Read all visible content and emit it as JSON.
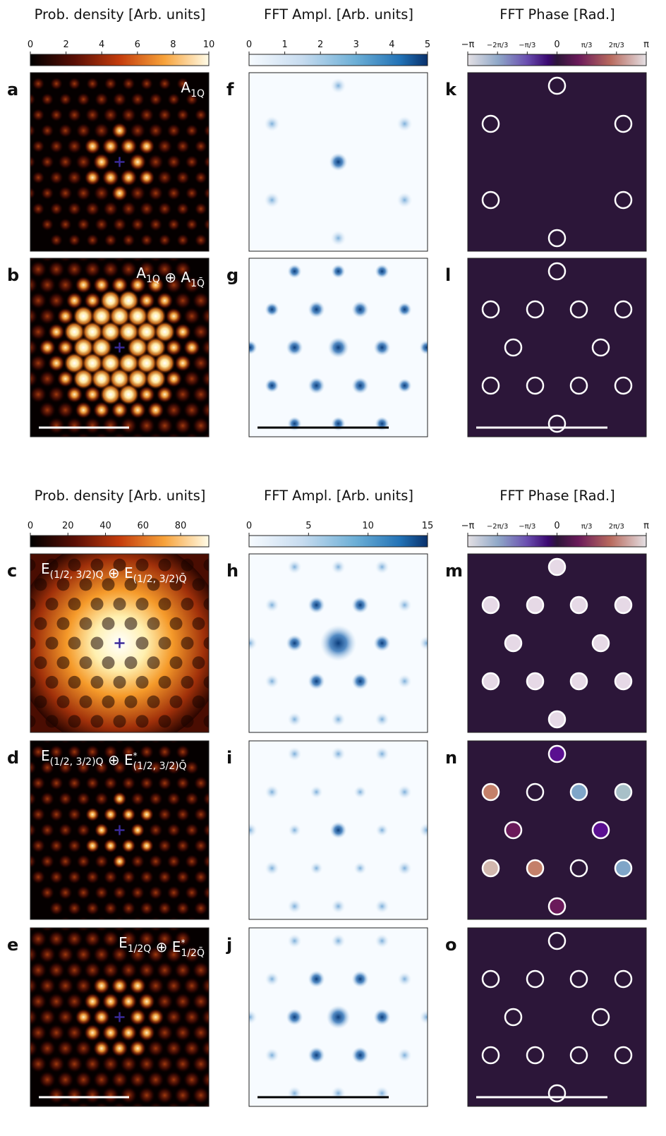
{
  "figure": {
    "sections": [
      {
        "column_titles": [
          "Prob. density [Arb. units]",
          "FFT Ampl. [Arb. units]",
          "FFT Phase [Rad.]"
        ],
        "density_colorbar": {
          "ticks": [
            "0",
            "2",
            "4",
            "6",
            "8",
            "10"
          ],
          "range": [
            0,
            10
          ]
        },
        "amplitude_colorbar": {
          "ticks": [
            "0",
            "1",
            "2",
            "3",
            "4",
            "5"
          ],
          "range": [
            0,
            5
          ]
        },
        "phase_colorbar": {
          "ticks": [
            "−π",
            "−2π/3",
            "−π/3",
            "0",
            "π/3",
            "2π/3",
            "π"
          ]
        }
      },
      {
        "column_titles": [
          "Prob. density [Arb. units]",
          "FFT Ampl. [Arb. units]",
          "FFT Phase [Rad.]"
        ],
        "density_colorbar": {
          "ticks": [
            "0",
            "20",
            "40",
            "60",
            "80"
          ],
          "range": [
            0,
            95
          ]
        },
        "amplitude_colorbar": {
          "ticks": [
            "0",
            "5",
            "10",
            "15"
          ],
          "range": [
            0,
            15
          ]
        },
        "phase_colorbar": {
          "ticks": [
            "−π",
            "−2π/3",
            "−π/3",
            "0",
            "π/3",
            "2π/3",
            "π"
          ]
        }
      }
    ],
    "rows": [
      {
        "letters": [
          "a",
          "f",
          "k"
        ],
        "label_base": [
          "A"
        ],
        "label_sub": [
          "1Q"
        ],
        "sep": "",
        "scalebar": false,
        "density": "a1q"
      },
      {
        "letters": [
          "b",
          "g",
          "l"
        ],
        "label_base": [
          "A",
          "A"
        ],
        "label_sub": [
          "1Q",
          "1Q̄"
        ],
        "sep": " ⊕ ",
        "scalebar": true,
        "density": "a1q2"
      },
      {
        "letters": [
          "c",
          "h",
          "m"
        ],
        "label_base": [
          "E",
          "E"
        ],
        "label_sub": [
          "(1/2, 3/2)Q",
          "(1/2, 3/2)Q̄"
        ],
        "sep": " ⊕ ",
        "star": false,
        "scalebar": false,
        "density": "ec"
      },
      {
        "letters": [
          "d",
          "i",
          "n"
        ],
        "label_base": [
          "E",
          "E"
        ],
        "label_sub": [
          "(1/2, 3/2)Q",
          "(1/2, 3/2)Q̄"
        ],
        "sep": " ⊕ ",
        "star": true,
        "scalebar": false,
        "density": "ed"
      },
      {
        "letters": [
          "e",
          "j",
          "o"
        ],
        "label_base": [
          "E",
          "E"
        ],
        "label_sub": [
          "1/2Q",
          "1/2Q̄"
        ],
        "sep": " ⊕ ",
        "star": true,
        "scalebar": true,
        "density": "ee"
      }
    ],
    "phase_panels": {
      "k": {
        "markers": "ring6",
        "fills": []
      },
      "l": {
        "markers": "ring12",
        "fills": []
      },
      "m": {
        "markers": "ring12",
        "fills": [
          "#e6d9e6",
          "#e6d9e6",
          "#e6d9e6",
          "#e6d9e6",
          "#e6d9e6",
          "#e6d9e6",
          "#e6d9e6",
          "#e6d9e6",
          "#e6d9e6",
          "#e6d9e6",
          "#e6d9e6",
          "#e6d9e6"
        ]
      },
      "n": {
        "markers": "ring12",
        "fills": [
          "#5a1090",
          "#c4806a",
          null,
          "#7fa5c8",
          "#a8c0c8",
          "#6a1a5a",
          "#5a1090",
          "#d2b8ae",
          "#c4806a",
          null,
          "#7fa5c8",
          "#6a1a5a"
        ]
      },
      "o": {
        "markers": "ring12",
        "fills": []
      }
    },
    "colors": {
      "phase_background": "#2c1639",
      "amp_background": "#f7fbff",
      "amp_peak": "#0b3d7c",
      "scalebar_dark_panel": "#ffffff",
      "scalebar_amp_panel": "#000000"
    }
  },
  "chart_data": [
    {
      "type": "heatmap",
      "panel": "a",
      "colorbar_label": "Prob. density [Arb. units]",
      "colorbar_range": [
        0,
        10
      ],
      "annotation": "A_1Q"
    },
    {
      "type": "heatmap",
      "panel": "b",
      "colorbar_label": "Prob. density [Arb. units]",
      "colorbar_range": [
        0,
        10
      ],
      "annotation": "A_1Q ⊕ A_1Q̄"
    },
    {
      "type": "heatmap",
      "panel": "f",
      "colorbar_label": "FFT Ampl. [Arb. units]",
      "colorbar_range": [
        0,
        5
      ]
    },
    {
      "type": "heatmap",
      "panel": "g",
      "colorbar_label": "FFT Ampl. [Arb. units]",
      "colorbar_range": [
        0,
        5
      ]
    },
    {
      "type": "scatter",
      "panel": "k",
      "colorbar_label": "FFT Phase [Rad.]",
      "colorbar_range": [
        "−π",
        "π"
      ]
    },
    {
      "type": "scatter",
      "panel": "l",
      "colorbar_label": "FFT Phase [Rad.]",
      "colorbar_range": [
        "−π",
        "π"
      ]
    },
    {
      "type": "heatmap",
      "panel": "c",
      "colorbar_label": "Prob. density [Arb. units]",
      "colorbar_range": [
        0,
        95
      ],
      "annotation": "E_(1/2,3/2)Q ⊕ E_(1/2,3/2)Q̄"
    },
    {
      "type": "heatmap",
      "panel": "d",
      "colorbar_label": "Prob. density [Arb. units]",
      "colorbar_range": [
        0,
        95
      ],
      "annotation": "E_(1/2,3/2)Q ⊕ E*_(1/2,3/2)Q̄"
    },
    {
      "type": "heatmap",
      "panel": "e",
      "colorbar_label": "Prob. density [Arb. units]",
      "colorbar_range": [
        0,
        95
      ],
      "annotation": "E_1/2Q ⊕ E*_1/2Q̄"
    },
    {
      "type": "heatmap",
      "panel": "h",
      "colorbar_label": "FFT Ampl. [Arb. units]",
      "colorbar_range": [
        0,
        15
      ]
    },
    {
      "type": "heatmap",
      "panel": "i",
      "colorbar_label": "FFT Ampl. [Arb. units]",
      "colorbar_range": [
        0,
        15
      ]
    },
    {
      "type": "heatmap",
      "panel": "j",
      "colorbar_label": "FFT Ampl. [Arb. units]",
      "colorbar_range": [
        0,
        15
      ]
    },
    {
      "type": "scatter",
      "panel": "m",
      "colorbar_label": "FFT Phase [Rad.]",
      "colorbar_range": [
        "−π",
        "π"
      ]
    },
    {
      "type": "scatter",
      "panel": "n",
      "colorbar_label": "FFT Phase [Rad.]",
      "colorbar_range": [
        "−π",
        "π"
      ]
    },
    {
      "type": "scatter",
      "panel": "o",
      "colorbar_label": "FFT Phase [Rad.]",
      "colorbar_range": [
        "−π",
        "π"
      ]
    }
  ]
}
